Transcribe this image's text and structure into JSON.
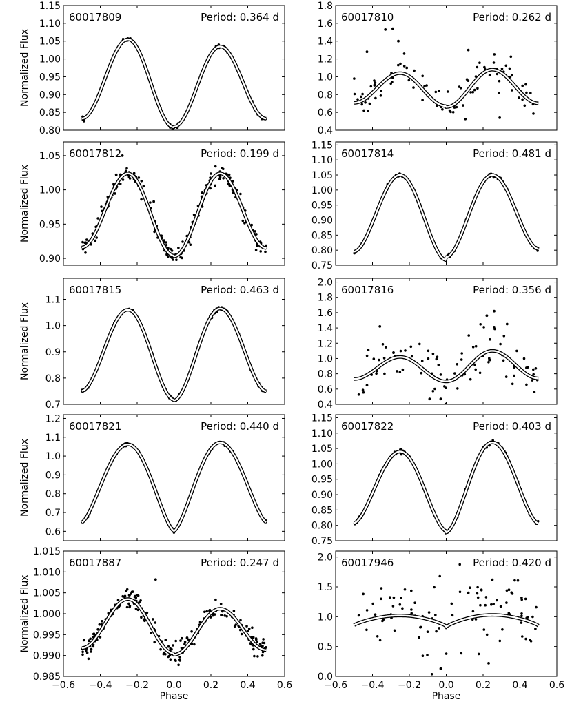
{
  "figure": {
    "x_axis_label": "Phase",
    "y_axis_label": "Normalized Flux",
    "x_ticks": [
      "−0.6",
      "−0.4",
      "−0.2",
      "0.0",
      "0.2",
      "0.4",
      "0.6"
    ],
    "colors": {
      "data_points": "#000000",
      "model_line": "#000000",
      "model_fill": "#ffffff"
    }
  },
  "chart_data": [
    {
      "type": "scatter",
      "id": "60017809",
      "period": "Period: 0.364 d",
      "ylim": [
        0.8,
        1.15
      ],
      "yticks": [
        "0.80",
        "0.85",
        "0.90",
        "0.95",
        "1.00",
        "1.05",
        "1.10",
        "1.15"
      ],
      "model": {
        "depth1": 0.247,
        "depth2": 0.225,
        "peak1": 1.055,
        "peak2": 1.035,
        "sigma": 0.22
      },
      "scatter_noise": 0.0025,
      "outliers": []
    },
    {
      "type": "scatter",
      "id": "60017810",
      "period": "Period: 0.262 d",
      "ylim": [
        0.4,
        1.8
      ],
      "yticks": [
        "0.4",
        "0.6",
        "0.8",
        "1.0",
        "1.2",
        "1.4",
        "1.6",
        "1.8"
      ],
      "model": {
        "depth1": 0.37,
        "depth2": 0.42,
        "peak1": 1.04,
        "peak2": 1.08,
        "sigma": 0.22
      },
      "scatter_noise": 0.1,
      "outliers": [
        [
          -0.43,
          1.28
        ],
        [
          -0.33,
          1.53
        ],
        [
          -0.29,
          1.54
        ],
        [
          -0.26,
          1.4
        ],
        [
          0.12,
          1.3
        ],
        [
          0.29,
          0.54
        ],
        [
          -0.04,
          0.84
        ]
      ]
    },
    {
      "type": "scatter",
      "id": "60017812",
      "period": "Period: 0.199 d",
      "ylim": [
        0.89,
        1.07
      ],
      "yticks": [
        "0.90",
        "0.95",
        "1.00",
        "1.05"
      ],
      "model": {
        "depth1": 0.12,
        "depth2": 0.121,
        "peak1": 1.024,
        "peak2": 1.024,
        "sigma": 0.22
      },
      "scatter_noise": 0.006,
      "outliers": [
        [
          -0.28,
          1.05
        ],
        [
          -0.11,
          0.983
        ]
      ]
    },
    {
      "type": "scatter",
      "id": "60017814",
      "period": "Period: 0.481 d",
      "ylim": [
        0.75,
        1.16
      ],
      "yticks": [
        "0.75",
        "0.80",
        "0.85",
        "0.90",
        "0.95",
        "1.00",
        "1.05",
        "1.10",
        "1.15"
      ],
      "model": {
        "depth1": 0.283,
        "depth2": 0.273,
        "peak1": 1.05,
        "peak2": 1.05,
        "sigma": 0.2
      },
      "scatter_noise": 0.003,
      "outliers": []
    },
    {
      "type": "scatter",
      "id": "60017815",
      "period": "Period: 0.463 d",
      "ylim": [
        0.7,
        1.18
      ],
      "yticks": [
        "0.7",
        "0.8",
        "0.9",
        "1.0",
        "1.1"
      ],
      "model": {
        "depth1": 0.343,
        "depth2": 0.35,
        "peak1": 1.06,
        "peak2": 1.065,
        "sigma": 0.2
      },
      "scatter_noise": 0.004,
      "outliers": []
    },
    {
      "type": "scatter",
      "id": "60017816",
      "period": "Period: 0.356 d",
      "ylim": [
        0.4,
        2.05
      ],
      "yticks": [
        "0.4",
        "0.6",
        "0.8",
        "1.0",
        "1.2",
        "1.4",
        "1.6",
        "1.8",
        "2.0"
      ],
      "model": {
        "depth1": 0.32,
        "depth2": 0.4,
        "peak1": 1.02,
        "peak2": 1.1,
        "sigma": 0.22
      },
      "scatter_noise": 0.18,
      "outliers": [
        [
          0.26,
          1.62
        ],
        [
          0.22,
          1.56
        ],
        [
          0.33,
          1.45
        ],
        [
          -0.36,
          1.42
        ],
        [
          -0.09,
          0.47
        ],
        [
          -0.03,
          0.47
        ],
        [
          -0.43,
          0.65
        ]
      ]
    },
    {
      "type": "scatter",
      "id": "60017821",
      "period": "Period: 0.440 d",
      "ylim": [
        0.55,
        1.22
      ],
      "yticks": [
        "0.6",
        "0.7",
        "0.8",
        "0.9",
        "1.0",
        "1.1",
        "1.2"
      ],
      "model": {
        "depth1": 0.46,
        "depth2": 0.47,
        "peak1": 1.062,
        "peak2": 1.072,
        "sigma": 0.16
      },
      "scatter_noise": 0.004,
      "outliers": []
    },
    {
      "type": "scatter",
      "id": "60017822",
      "period": "Period: 0.403 d",
      "ylim": [
        0.75,
        1.16
      ],
      "yticks": [
        "0.75",
        "0.80",
        "0.85",
        "0.90",
        "0.95",
        "1.00",
        "1.05",
        "1.10",
        "1.15"
      ],
      "model": {
        "depth1": 0.258,
        "depth2": 0.293,
        "peak1": 1.04,
        "peak2": 1.07,
        "sigma": 0.18
      },
      "scatter_noise": 0.0035,
      "outliers": []
    },
    {
      "type": "scatter",
      "id": "60017887",
      "period": "Period: 0.247 d",
      "ylim": [
        0.985,
        1.015
      ],
      "yticks": [
        "0.985",
        "0.990",
        "0.995",
        "1.000",
        "1.005",
        "1.010",
        "1.015"
      ],
      "model": {
        "depth1": 0.013,
        "depth2": 0.011,
        "peak1": 1.0035,
        "peak2": 1.0012,
        "sigma": 0.22
      },
      "scatter_noise": 0.0013,
      "outliers": [
        [
          -0.1,
          1.0082
        ]
      ]
    },
    {
      "type": "scatter",
      "id": "60017946",
      "period": "Period: 0.420 d",
      "ylim": [
        0.0,
        2.1
      ],
      "yticks": [
        "0.0",
        "0.5",
        "1.0",
        "1.5",
        "2.0"
      ],
      "model": {
        "depth1": 0.18,
        "depth2": 0.2,
        "peak1": 1.02,
        "peak2": 1.03,
        "sigma": 0.05
      },
      "scatter_noise": 0.3,
      "outliers": [
        [
          0.25,
          1.62
        ],
        [
          0.34,
          1.45
        ],
        [
          0.23,
          0.22
        ],
        [
          -0.03,
          0.13
        ],
        [
          -0.45,
          1.38
        ],
        [
          0.12,
          1.4
        ]
      ]
    }
  ]
}
